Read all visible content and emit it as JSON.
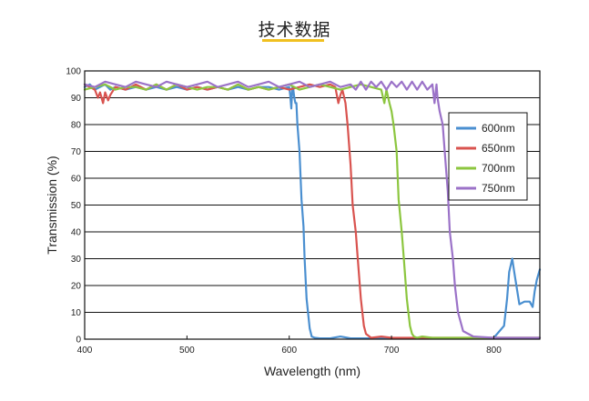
{
  "header": {
    "title": "技术数据",
    "accent_color": "#f0c020"
  },
  "chart_data": {
    "type": "line",
    "title": "",
    "xlabel": "Wavelength (nm)",
    "ylabel": "Transmission (%)",
    "xlim": [
      400,
      845
    ],
    "ylim": [
      0,
      100
    ],
    "x_ticks": [
      400,
      500,
      600,
      700,
      800
    ],
    "y_ticks": [
      0,
      10,
      20,
      30,
      40,
      50,
      60,
      70,
      80,
      90,
      100
    ],
    "grid": "horizontal",
    "legend_position": "right",
    "series": [
      {
        "name": "600nm",
        "color": "#4a8fd0",
        "x": [
          400,
          405,
          410,
          415,
          420,
          425,
          430,
          440,
          450,
          460,
          470,
          480,
          490,
          500,
          510,
          520,
          530,
          540,
          550,
          560,
          570,
          580,
          590,
          600,
          601,
          602,
          603,
          604,
          605,
          606,
          607,
          608,
          610,
          612,
          614,
          615,
          617,
          620,
          622,
          625,
          630,
          640,
          650,
          660,
          680,
          700,
          720,
          740,
          760,
          780,
          800,
          810,
          813,
          815,
          818,
          820,
          825,
          830,
          835,
          838,
          840,
          842,
          845
        ],
        "y": [
          94,
          95,
          93,
          94,
          95,
          93,
          94,
          93,
          94,
          93,
          94,
          93,
          94,
          93,
          94,
          93,
          94,
          93,
          94,
          93,
          94,
          94,
          93,
          94,
          91,
          86,
          94,
          93,
          90,
          88,
          88,
          80,
          70,
          52,
          42,
          30,
          15,
          4,
          1,
          0.5,
          0.3,
          0.3,
          1,
          0.3,
          0.3,
          0.3,
          0.3,
          0.3,
          0.3,
          0.3,
          0.5,
          5,
          15,
          25,
          30,
          25,
          13,
          14,
          14,
          12,
          18,
          22,
          26
        ]
      },
      {
        "name": "650nm",
        "color": "#d9534f",
        "x": [
          400,
          405,
          410,
          413,
          415,
          418,
          420,
          423,
          425,
          430,
          440,
          450,
          460,
          470,
          480,
          490,
          500,
          510,
          520,
          530,
          540,
          550,
          560,
          570,
          580,
          590,
          600,
          610,
          620,
          630,
          640,
          645,
          648,
          650,
          652,
          655,
          657,
          660,
          662,
          665,
          667,
          670,
          673,
          675,
          680,
          690,
          700,
          710,
          720,
          740,
          760,
          780,
          800,
          820,
          845
        ],
        "y": [
          95,
          94,
          93,
          90,
          92,
          88,
          92,
          89,
          91,
          94,
          93,
          95,
          93,
          95,
          93,
          95,
          93,
          94,
          93,
          94,
          93,
          95,
          93,
          94,
          93,
          94,
          93,
          94,
          95,
          94,
          95,
          94,
          88,
          91,
          93,
          88,
          80,
          65,
          50,
          40,
          30,
          15,
          5,
          2,
          0.5,
          1,
          0.5,
          0.5,
          0.5,
          0.5,
          0.5,
          0.5,
          0.5,
          0.5,
          0.5
        ]
      },
      {
        "name": "700nm",
        "color": "#8cc63f",
        "x": [
          400,
          410,
          420,
          430,
          440,
          450,
          460,
          470,
          480,
          490,
          500,
          510,
          520,
          530,
          540,
          550,
          560,
          570,
          580,
          590,
          600,
          610,
          620,
          630,
          640,
          650,
          660,
          670,
          680,
          690,
          693,
          695,
          698,
          700,
          702,
          705,
          707,
          710,
          712,
          715,
          718,
          720,
          722,
          725,
          730,
          740,
          760,
          780,
          800,
          820,
          845
        ],
        "y": [
          93,
          94,
          95,
          93,
          94,
          94,
          93,
          95,
          93,
          95,
          94,
          93,
          94,
          94,
          93,
          95,
          93,
          94,
          93,
          94,
          95,
          93,
          94,
          95,
          94,
          93,
          94,
          95,
          94,
          93,
          88,
          93,
          88,
          85,
          80,
          70,
          52,
          40,
          30,
          15,
          5,
          2,
          1,
          0.5,
          1,
          0.5,
          0.5,
          0.5,
          0.5,
          0.5,
          0.5
        ]
      },
      {
        "name": "750nm",
        "color": "#9b72c8",
        "x": [
          400,
          410,
          420,
          430,
          440,
          450,
          460,
          470,
          480,
          490,
          500,
          510,
          520,
          530,
          540,
          550,
          560,
          570,
          580,
          590,
          600,
          610,
          620,
          630,
          640,
          650,
          660,
          665,
          670,
          675,
          680,
          685,
          690,
          695,
          700,
          705,
          710,
          715,
          720,
          725,
          730,
          735,
          740,
          742,
          744,
          745,
          747,
          750,
          752,
          755,
          757,
          760,
          762,
          765,
          770,
          780,
          800,
          820,
          845
        ],
        "y": [
          95,
          94,
          96,
          95,
          94,
          96,
          95,
          94,
          96,
          95,
          94,
          95,
          96,
          94,
          95,
          96,
          94,
          95,
          96,
          94,
          95,
          96,
          94,
          95,
          96,
          94,
          95,
          93,
          96,
          93,
          96,
          94,
          96,
          93,
          96,
          94,
          96,
          93,
          96,
          93,
          96,
          93,
          95,
          88,
          95,
          90,
          85,
          80,
          70,
          55,
          40,
          30,
          20,
          10,
          3,
          1,
          0.5,
          0.5,
          0.5
        ]
      }
    ]
  }
}
